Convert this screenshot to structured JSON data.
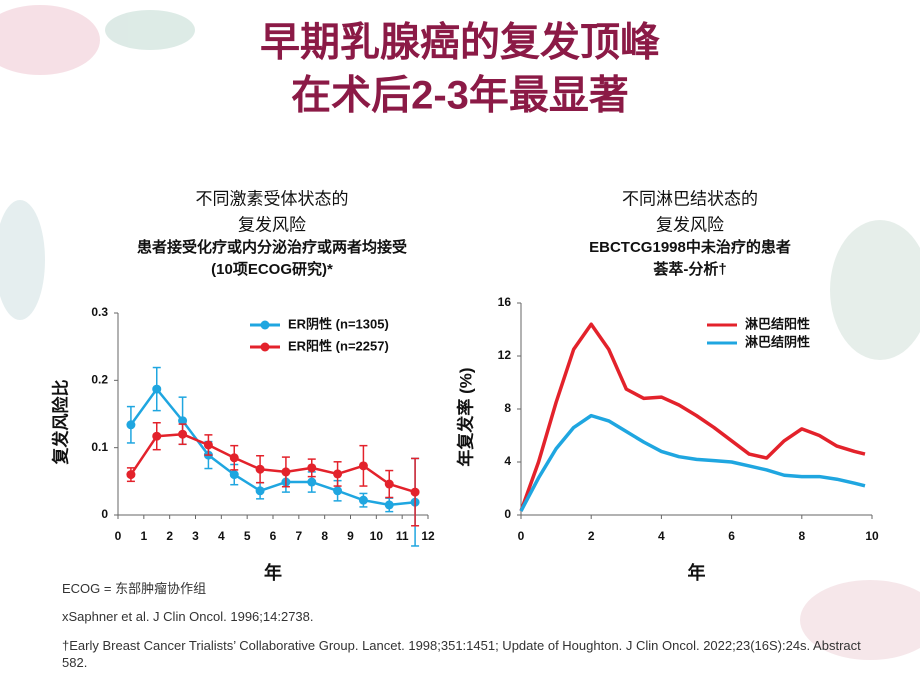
{
  "slide": {
    "title": [
      "早期乳腺癌的复发顶峰",
      "在术后2-3年最显著"
    ],
    "footnotes": [
      "ECOG = 东部肿瘤协作组",
      "xSaphner et al. J Clin Oncol. 1996;14:2738.",
      "†Early Breast Cancer Trialists’ Collaborative Group. Lancet. 1998;351:1451; Update of Houghton. J Clin Oncol. 2022;23(16S):24s. Abstract 582."
    ]
  },
  "chart_data": [
    {
      "type": "errorbar",
      "heading": [
        "不同激素受体状态的",
        "复发风险",
        "患者接受化疗或内分泌治疗或两者均接受",
        "(10项ECOG研究)*"
      ],
      "xlabel": "年",
      "ylabel": "复发风险比",
      "x": [
        0.5,
        1.5,
        2.5,
        3.5,
        4.5,
        5.5,
        6.5,
        7.5,
        8.5,
        9.5,
        10.5,
        11.5
      ],
      "xlim": [
        0,
        12
      ],
      "xticks": [
        0,
        1,
        2,
        3,
        4,
        5,
        6,
        7,
        8,
        9,
        10,
        11,
        12
      ],
      "ylim": [
        0,
        0.3
      ],
      "yticks": [
        0,
        0.1,
        0.2,
        0.3
      ],
      "legend": "upper right",
      "series": [
        {
          "name": "ER阴性 (n=1305)",
          "color": "#1fa6e0",
          "values": [
            0.134,
            0.187,
            0.14,
            0.089,
            0.06,
            0.036,
            0.049,
            0.049,
            0.036,
            0.022,
            0.015,
            0.019
          ],
          "errors": [
            0.027,
            0.032,
            0.035,
            0.02,
            0.015,
            0.012,
            0.015,
            0.015,
            0.015,
            0.01,
            0.01,
            0.065
          ]
        },
        {
          "name": "ER阳性 (n=2257)",
          "color": "#e3222b",
          "values": [
            0.06,
            0.117,
            0.12,
            0.104,
            0.085,
            0.068,
            0.064,
            0.07,
            0.061,
            0.073,
            0.046,
            0.034
          ],
          "errors": [
            0.01,
            0.02,
            0.015,
            0.015,
            0.018,
            0.02,
            0.022,
            0.013,
            0.018,
            0.03,
            0.02,
            0.05
          ]
        }
      ]
    },
    {
      "type": "line",
      "heading": [
        "不同淋巴结状态的",
        "复发风险",
        "EBCTCG1998中未治疗的患者",
        "荟萃-分析†"
      ],
      "xlabel": "年",
      "ylabel": "年复发率 (%)",
      "x": [
        0,
        0.5,
        1,
        1.5,
        2,
        2.5,
        3,
        3.5,
        4,
        4.5,
        5,
        5.5,
        6,
        6.5,
        7,
        7.5,
        8,
        8.5,
        9,
        9.5,
        9.8
      ],
      "xlim": [
        0,
        10
      ],
      "xticks": [
        0,
        2,
        4,
        6,
        8,
        10
      ],
      "ylim": [
        0,
        16
      ],
      "yticks": [
        0,
        4,
        8,
        12,
        16
      ],
      "legend": "upper right",
      "series": [
        {
          "name": "淋巴结阳性",
          "color": "#e3222b",
          "values": [
            0.3,
            4,
            8.5,
            12.5,
            14.4,
            12.5,
            9.5,
            8.8,
            8.9,
            8.3,
            7.5,
            6.6,
            5.6,
            4.6,
            4.3,
            5.6,
            6.5,
            6.0,
            5.2,
            4.8,
            4.6
          ]
        },
        {
          "name": "淋巴结阴性",
          "color": "#1fa6e0",
          "values": [
            0.3,
            2.8,
            5,
            6.6,
            7.5,
            7.1,
            6.3,
            5.5,
            4.8,
            4.4,
            4.2,
            4.1,
            4.0,
            3.7,
            3.4,
            3.0,
            2.9,
            2.9,
            2.7,
            2.4,
            2.2
          ]
        }
      ]
    }
  ]
}
